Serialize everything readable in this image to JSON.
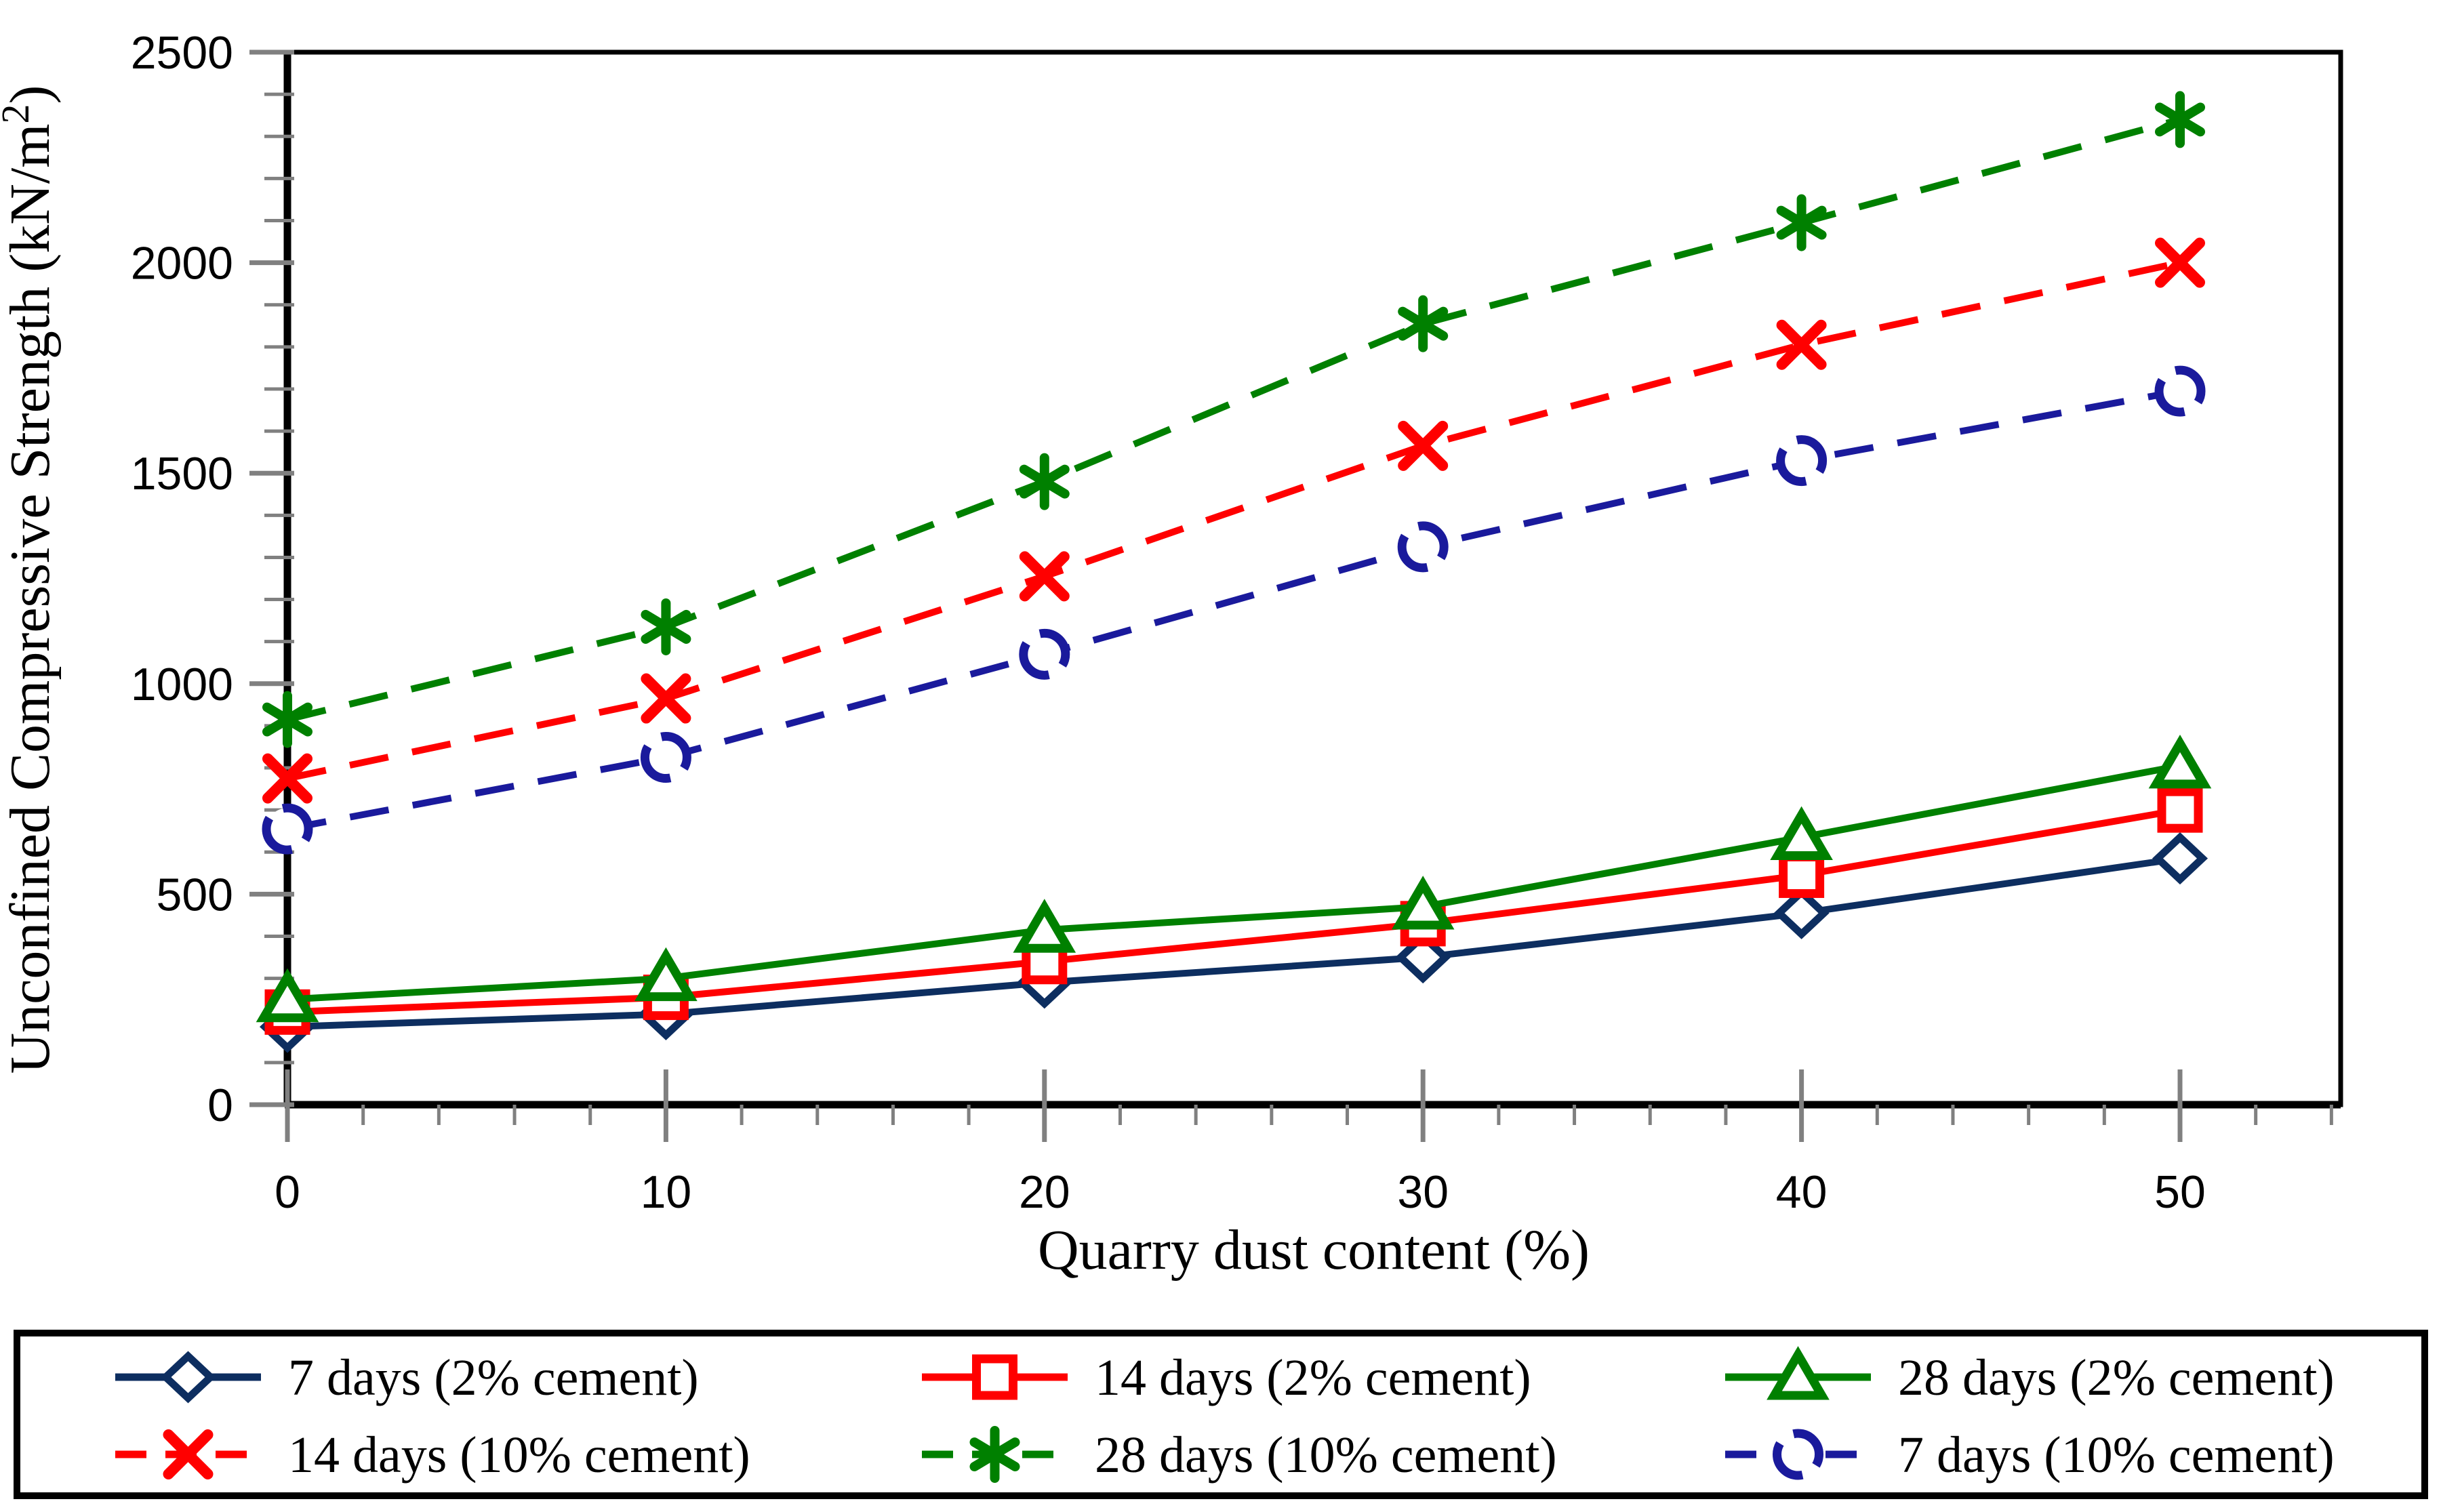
{
  "chart_data": {
    "type": "line",
    "title": "",
    "xlabel": "Quarry dust content (%)",
    "ylabel": "Unconfined Compressive Strength (kN/m²)",
    "ylabel_parts": {
      "main": "Unconfined Compressive Strength (kN/m",
      "sup": "2",
      "close": ")"
    },
    "x": [
      0,
      10,
      20,
      30,
      40,
      50
    ],
    "x_tick_labels": [
      "0",
      "10",
      "20",
      "30",
      "40",
      "50"
    ],
    "y_tick_labels": [
      "0",
      "500",
      "1000",
      "1500",
      "2000",
      "2500"
    ],
    "xlim": [
      0,
      54.2
    ],
    "ylim": [
      0,
      2500
    ],
    "x_major_step": 10,
    "x_minor_step": 2,
    "y_major_step": 500,
    "y_minor_step": 100,
    "grid": false,
    "legend_position": "bottom",
    "axis_color": "#000000",
    "tick_color": "#808080",
    "series": [
      {
        "name": "7 days (2% cement)",
        "color": "#0d2e60",
        "marker": "diamond",
        "line": "solid",
        "values": [
          185,
          215,
          290,
          350,
          455,
          585
        ]
      },
      {
        "name": "14 days (2% cement)",
        "color": "#ff0000",
        "marker": "square",
        "line": "solid",
        "values": [
          220,
          255,
          340,
          430,
          545,
          700
        ]
      },
      {
        "name": "28 days (2% cement)",
        "color": "#008000",
        "marker": "triangle",
        "line": "solid",
        "values": [
          250,
          300,
          415,
          470,
          635,
          805
        ]
      },
      {
        "name": "14 days (10% cement)",
        "color": "#ff0000",
        "marker": "x",
        "line": "dashed",
        "values": [
          775,
          965,
          1255,
          1565,
          1805,
          2000
        ]
      },
      {
        "name": "28 days (10% cement)",
        "color": "#008000",
        "marker": "asterisk",
        "line": "dashed",
        "values": [
          915,
          1135,
          1480,
          1855,
          2095,
          2340
        ]
      },
      {
        "name": "7 days (10% cement)",
        "color": "#1a1a9c",
        "marker": "circle",
        "line": "dashed",
        "values": [
          655,
          825,
          1070,
          1325,
          1530,
          1695
        ]
      }
    ],
    "legend_order": [
      0,
      1,
      2,
      3,
      4,
      5
    ],
    "legend_columns": 3
  }
}
